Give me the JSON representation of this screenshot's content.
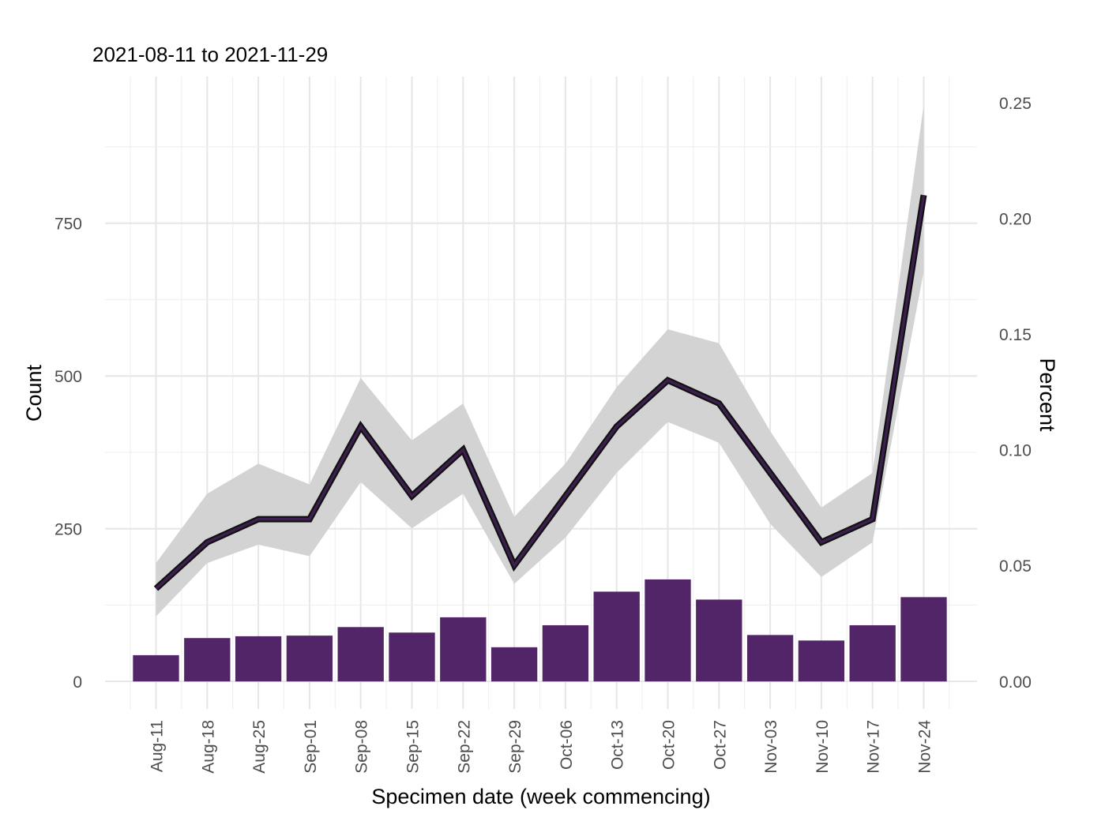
{
  "chart_data": {
    "type": "bar+line",
    "subtitle": "2021-08-11 to 2021-11-29",
    "xlabel": "Specimen date (week commencing)",
    "ylabel_left": "Count",
    "ylabel_right": "Percent",
    "categories": [
      "Aug-11",
      "Aug-18",
      "Aug-25",
      "Sep-01",
      "Sep-08",
      "Sep-15",
      "Sep-22",
      "Sep-29",
      "Oct-06",
      "Oct-13",
      "Oct-20",
      "Oct-27",
      "Nov-03",
      "Nov-10",
      "Nov-17",
      "Nov-24"
    ],
    "left_axis": {
      "ticks": [
        0,
        250,
        500,
        750
      ],
      "ylim": [
        -45,
        990
      ]
    },
    "right_axis": {
      "ticks": [
        0.0,
        0.05,
        0.1,
        0.15,
        0.2,
        0.25
      ],
      "tick_labels": [
        "0.00",
        "0.05",
        "0.10",
        "0.15",
        "0.20",
        "0.25"
      ],
      "ylim": [
        -0.012,
        0.2612
      ]
    },
    "bars": {
      "name": "Count",
      "color": "#512567",
      "values": [
        43,
        71,
        74,
        75,
        89,
        80,
        105,
        56,
        92,
        147,
        167,
        134,
        76,
        67,
        92,
        138
      ]
    },
    "line": {
      "name": "Percent",
      "color": "#3d1f4f",
      "values": [
        0.04,
        0.06,
        0.07,
        0.07,
        0.11,
        0.08,
        0.1,
        0.05,
        0.08,
        0.11,
        0.13,
        0.12,
        0.09,
        0.06,
        0.07,
        0.21
      ],
      "ci_lower": [
        0.028,
        0.051,
        0.059,
        0.054,
        0.086,
        0.066,
        0.081,
        0.042,
        0.062,
        0.09,
        0.112,
        0.103,
        0.068,
        0.045,
        0.06,
        0.177
      ],
      "ci_upper": [
        0.051,
        0.081,
        0.094,
        0.085,
        0.131,
        0.104,
        0.12,
        0.071,
        0.094,
        0.127,
        0.152,
        0.146,
        0.108,
        0.075,
        0.09,
        0.249
      ],
      "ci_color": "#d3d3d3"
    },
    "grid": true,
    "legend": "none"
  }
}
